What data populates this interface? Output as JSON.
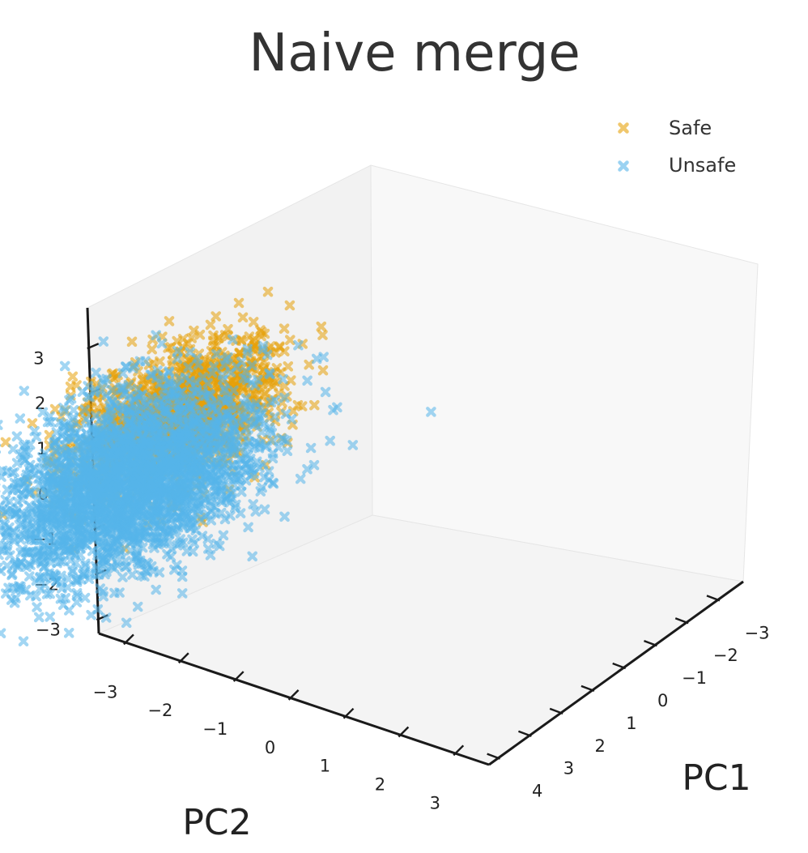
{
  "chart_data": {
    "type": "scatter",
    "projection": "3d",
    "title": "Naive merge",
    "xlabel": "PC1",
    "ylabel": "PC2",
    "zlabel": "",
    "xlim": [
      -3.8,
      4.3
    ],
    "ylim": [
      -3.5,
      3.6
    ],
    "zlim": [
      -3.3,
      3.9
    ],
    "xticks": [
      "−3",
      "−2",
      "−1",
      "0",
      "1",
      "2",
      "3",
      "4"
    ],
    "yticks": [
      "−3",
      "−2",
      "−1",
      "0",
      "1",
      "2",
      "3"
    ],
    "zticks": [
      "−3",
      "−2",
      "−1",
      "0",
      "1",
      "2",
      "3"
    ],
    "legend_position": "top-right",
    "grid": false,
    "series": [
      {
        "name": "Safe",
        "color": "#E6A10A",
        "marker": "x",
        "point_count": 1300,
        "distribution": "gaussian cloud",
        "center": [
          -0.6,
          1.2,
          1.2
        ],
        "spread": [
          0.9,
          0.75,
          0.75
        ]
      },
      {
        "name": "Unsafe",
        "color": "#56B4E9",
        "marker": "x",
        "point_count": 2600,
        "distribution": "gaussian cloud",
        "center": [
          0.3,
          -0.3,
          0.0
        ],
        "spread": [
          1.0,
          1.0,
          1.0
        ]
      }
    ]
  }
}
